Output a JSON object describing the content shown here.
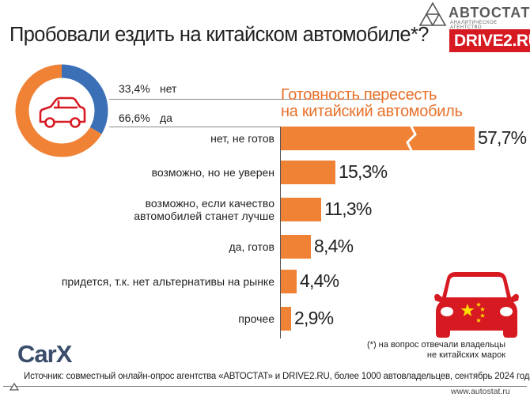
{
  "title": "Пробовали ездить на китайском автомобиле*?",
  "brand": {
    "name": "АВТОСТАТ",
    "tagline": "АНАЛИТИЧЕСКОЕ АГЕНТСТВО",
    "partner": "DRIVE2.RU"
  },
  "pie": {
    "slices": [
      {
        "label": "нет",
        "pct": "33,4%",
        "value": 33.4,
        "color": "#3b6fb6"
      },
      {
        "label": "да",
        "pct": "66,6%",
        "value": 66.6,
        "color": "#f08236"
      }
    ],
    "icon": "car-icon"
  },
  "chart_data": {
    "type": "bar",
    "orientation": "horizontal",
    "title": "Готовность пересесть на китайский автомобиль",
    "title_lines": [
      "Готовность пересесть",
      "на китайский автомобиль"
    ],
    "categories": [
      "нет, не готов",
      "возможно, но не уверен",
      "возможно, если качество автомобилей станет лучше",
      "да, готов",
      "придется, т.к. нет альтернативы на рынке",
      "прочее"
    ],
    "category_lines": [
      [
        "нет, не готов"
      ],
      [
        "возможно, но не уверен"
      ],
      [
        "возможно, если качество",
        "автомобилей станет лучше"
      ],
      [
        "да, готов"
      ],
      [
        "придется, т.к. нет альтернативы на рынке"
      ],
      [
        "прочее"
      ]
    ],
    "values": [
      57.7,
      15.3,
      11.3,
      8.4,
      4.4,
      2.9
    ],
    "value_labels": [
      "57,7%",
      "15,3%",
      "11,3%",
      "8,4%",
      "4,4%",
      "2,9%"
    ],
    "unit": "%",
    "bar_color": "#f08236",
    "broken_axis_first_bar": true,
    "grid": false
  },
  "footnote_lines": [
    "(*) на вопрос отвечали владельцы",
    "не китайских марок"
  ],
  "footer": {
    "logo": "CarX",
    "source": "Источник: совместный онлайн-опрос агентства «АВТОСТАТ» и DRIVE2.RU, более 1000 автовладельцев, сентябрь 2024 года",
    "site": "www.autostat.ru"
  },
  "colors": {
    "accent": "#f08236",
    "blue": "#3b6fb6",
    "red": "#d71921",
    "title_orange": "#e8702a"
  }
}
